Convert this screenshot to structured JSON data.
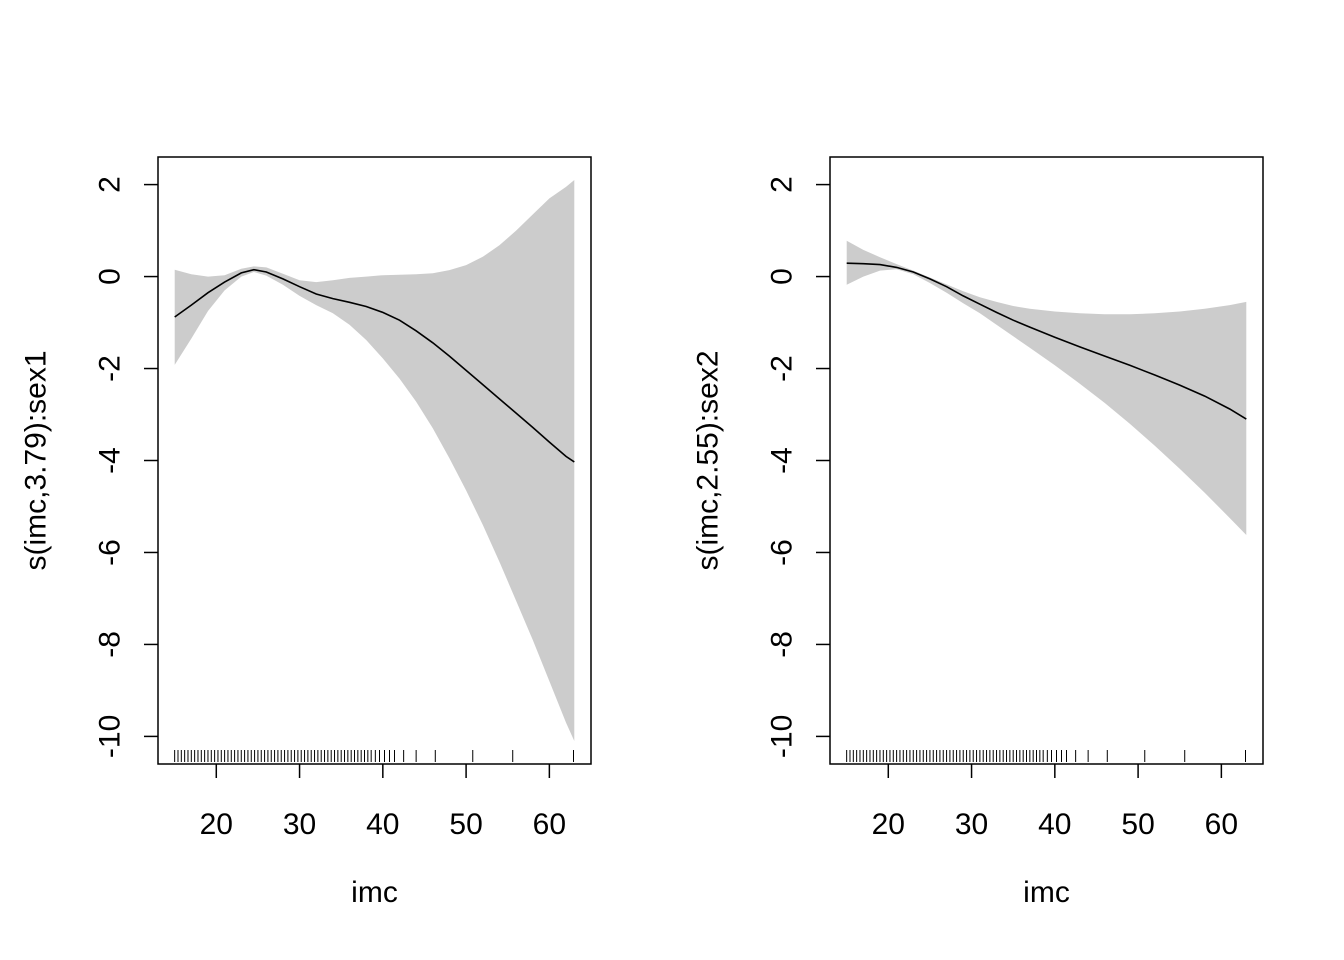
{
  "chart_data": [
    {
      "type": "line",
      "subtype": "gam-smooth-with-confidence-band",
      "title": "",
      "xlabel": "imc",
      "ylabel": "s(imc,3.79):sex1",
      "xlim": [
        13,
        65
      ],
      "ylim": [
        -10.6,
        2.6
      ],
      "xticks": [
        20,
        30,
        40,
        50,
        60
      ],
      "yticks": [
        2,
        0,
        -2,
        -4,
        -6,
        -8,
        -10
      ],
      "band_color": "#CCCCCC",
      "line_color": "#000000",
      "x": [
        15,
        17,
        19,
        21,
        23,
        24.5,
        26,
        28,
        30,
        32,
        34,
        36,
        38,
        40,
        42,
        44,
        46,
        48,
        50,
        52,
        54,
        56,
        58,
        60,
        62,
        63
      ],
      "fit": [
        -0.88,
        -0.62,
        -0.35,
        -0.12,
        0.08,
        0.15,
        0.1,
        -0.05,
        -0.22,
        -0.38,
        -0.48,
        -0.56,
        -0.65,
        -0.78,
        -0.95,
        -1.18,
        -1.44,
        -1.73,
        -2.04,
        -2.35,
        -2.66,
        -2.97,
        -3.28,
        -3.6,
        -3.91,
        -4.03
      ],
      "lower": [
        -1.92,
        -1.35,
        -0.75,
        -0.3,
        0.0,
        0.1,
        0.02,
        -0.18,
        -0.42,
        -0.62,
        -0.8,
        -1.05,
        -1.38,
        -1.78,
        -2.22,
        -2.72,
        -3.3,
        -3.95,
        -4.65,
        -5.4,
        -6.2,
        -7.05,
        -7.9,
        -8.8,
        -9.7,
        -10.1
      ],
      "upper": [
        0.15,
        0.05,
        0.0,
        0.03,
        0.17,
        0.22,
        0.2,
        0.06,
        -0.08,
        -0.12,
        -0.08,
        -0.03,
        0.0,
        0.03,
        0.04,
        0.05,
        0.07,
        0.14,
        0.25,
        0.43,
        0.68,
        1.0,
        1.35,
        1.7,
        1.95,
        2.1
      ],
      "rug": [
        15,
        15.4,
        15.8,
        16.2,
        16.6,
        17,
        17.4,
        17.8,
        18.2,
        18.6,
        19,
        19.4,
        19.8,
        20.2,
        20.6,
        21,
        21.4,
        21.8,
        22.2,
        22.6,
        23,
        23.4,
        23.8,
        24.2,
        24.6,
        25,
        25.4,
        25.8,
        26.2,
        26.6,
        27,
        27.4,
        27.8,
        28.2,
        28.6,
        29,
        29.4,
        29.8,
        30.2,
        30.6,
        31,
        31.4,
        31.8,
        32.2,
        32.6,
        33,
        33.4,
        33.8,
        34.2,
        34.6,
        35,
        35.4,
        35.8,
        36.2,
        36.6,
        37,
        37.4,
        37.8,
        38.2,
        38.6,
        39.1,
        39.6,
        40.2,
        40.8,
        41.4,
        42.5,
        44,
        46.3,
        50.8,
        55.6,
        62.9
      ]
    },
    {
      "type": "line",
      "subtype": "gam-smooth-with-confidence-band",
      "title": "",
      "xlabel": "imc",
      "ylabel": "s(imc,2.55):sex2",
      "xlim": [
        13,
        65
      ],
      "ylim": [
        -10.6,
        2.6
      ],
      "xticks": [
        20,
        30,
        40,
        50,
        60
      ],
      "yticks": [
        2,
        0,
        -2,
        -4,
        -6,
        -8,
        -10
      ],
      "band_color": "#CCCCCC",
      "line_color": "#000000",
      "x": [
        15,
        17,
        19,
        21,
        23,
        25,
        27,
        29,
        31,
        33,
        35,
        37,
        40,
        43,
        46,
        49,
        52,
        55,
        58,
        61,
        63
      ],
      "fit": [
        0.29,
        0.28,
        0.26,
        0.2,
        0.1,
        -0.05,
        -0.22,
        -0.42,
        -0.6,
        -0.78,
        -0.95,
        -1.1,
        -1.32,
        -1.53,
        -1.73,
        -1.93,
        -2.14,
        -2.36,
        -2.6,
        -2.88,
        -3.1
      ],
      "lower": [
        -0.18,
        0.0,
        0.13,
        0.16,
        0.05,
        -0.14,
        -0.35,
        -0.58,
        -0.8,
        -1.05,
        -1.3,
        -1.55,
        -1.93,
        -2.33,
        -2.75,
        -3.2,
        -3.68,
        -4.18,
        -4.7,
        -5.25,
        -5.62
      ],
      "upper": [
        0.78,
        0.58,
        0.42,
        0.27,
        0.13,
        -0.02,
        -0.17,
        -0.32,
        -0.45,
        -0.55,
        -0.64,
        -0.7,
        -0.76,
        -0.8,
        -0.82,
        -0.82,
        -0.8,
        -0.76,
        -0.7,
        -0.62,
        -0.55
      ],
      "rug": [
        15,
        15.4,
        15.8,
        16.2,
        16.6,
        17,
        17.4,
        17.8,
        18.2,
        18.6,
        19,
        19.4,
        19.8,
        20.2,
        20.6,
        21,
        21.4,
        21.8,
        22.2,
        22.6,
        23,
        23.4,
        23.8,
        24.2,
        24.6,
        25,
        25.4,
        25.8,
        26.2,
        26.6,
        27,
        27.4,
        27.8,
        28.2,
        28.6,
        29,
        29.4,
        29.8,
        30.2,
        30.6,
        31,
        31.4,
        31.8,
        32.2,
        32.6,
        33,
        33.4,
        33.8,
        34.2,
        34.6,
        35,
        35.4,
        35.8,
        36.2,
        36.6,
        37,
        37.4,
        37.8,
        38.2,
        38.6,
        39.1,
        39.6,
        40.2,
        40.8,
        41.4,
        42.5,
        44,
        46.3,
        50.8,
        55.6,
        62.9
      ]
    }
  ]
}
